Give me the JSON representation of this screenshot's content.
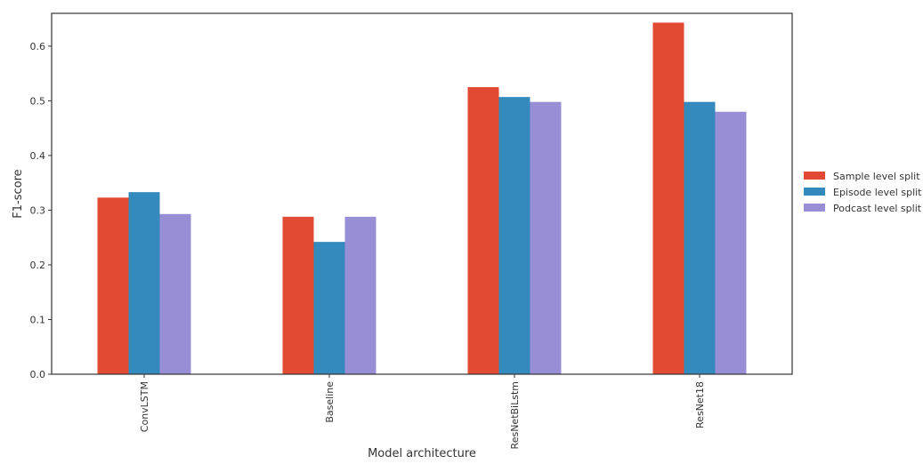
{
  "chart_data": {
    "type": "bar",
    "title": "",
    "xlabel": "Model architecture",
    "ylabel": "F1-score",
    "ylim": [
      0,
      0.66
    ],
    "yticks": [
      "0.0",
      "0.1",
      "0.2",
      "0.3",
      "0.4",
      "0.5",
      "0.6"
    ],
    "categories": [
      "ConvLSTM",
      "Baseline",
      "ResNetBiLstm",
      "ResNet18"
    ],
    "series": [
      {
        "name": "Sample level split",
        "color": "#e24a33",
        "values": [
          0.323,
          0.288,
          0.525,
          0.643
        ]
      },
      {
        "name": "Episode level split",
        "color": "#348abd",
        "values": [
          0.333,
          0.242,
          0.507,
          0.498
        ]
      },
      {
        "name": "Podcast level split",
        "color": "#988ed5",
        "values": [
          0.293,
          0.288,
          0.498,
          0.48
        ]
      }
    ],
    "grid": false,
    "legend_position": "right"
  }
}
